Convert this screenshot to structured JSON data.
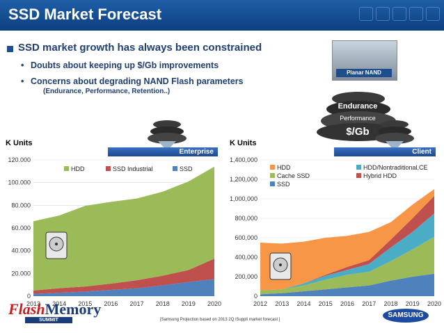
{
  "header": {
    "title": "SSD Market Forecast"
  },
  "bullets": {
    "main": "SSD market growth has always been constrained",
    "sub1": "Doubts about keeping up $/Gb improvements",
    "sub2": "Concerns about degrading NAND Flash parameters",
    "note": "(Endurance, Performance, Retention..)"
  },
  "graphic": {
    "nand_label": "Planar NAND",
    "endurance": "Endurance",
    "performance": "Performance",
    "cost": "$/Gb"
  },
  "left_panel": {
    "units": "K Units",
    "segment": "Enterprise"
  },
  "right_panel": {
    "units": "K Units",
    "segment": "Client"
  },
  "footer": {
    "source": "[Samsung Projection based on 2013 2Q iSuppli market forecast ]",
    "logo_left_1": "Flash",
    "logo_left_2": "Memory",
    "logo_left_3": "SUMMIT",
    "logo_right": "SAMSUNG"
  },
  "colors": {
    "hdd": "#9bbb59",
    "ssd_industrial": "#c0504d",
    "ssd": "#4f81bd",
    "cache_ssd": "#9bbb59",
    "hdd_client": "#f79646",
    "hdd_nontrad": "#4bacc6",
    "hybrid": "#c0504d"
  },
  "chart_data": [
    {
      "type": "area",
      "stacked": true,
      "x": [
        "2013",
        "2014",
        "2015",
        "2016",
        "2017",
        "2018",
        "2019",
        "2020"
      ],
      "series": [
        {
          "name": "SSD",
          "values": [
            2000,
            3000,
            4000,
            5500,
            7000,
            9500,
            12500,
            15000
          ]
        },
        {
          "name": "SSD Industrial",
          "values": [
            3000,
            4000,
            4500,
            5500,
            7000,
            8500,
            10500,
            18000
          ]
        },
        {
          "name": "HDD",
          "values": [
            61000,
            64000,
            71000,
            72000,
            72000,
            74000,
            78000,
            81000
          ]
        }
      ],
      "ylim": [
        0,
        120000
      ],
      "yticks": [
        "0",
        "20.000",
        "40.000",
        "60.000",
        "80.000",
        "100.000",
        "120.000"
      ],
      "xticks": [
        "2013",
        "2014",
        "2015",
        "2016",
        "2017",
        "2018",
        "2019",
        "2020"
      ]
    },
    {
      "type": "area",
      "stacked": true,
      "x": [
        "2012",
        "2013",
        "2014",
        "2015",
        "2016",
        "2017",
        "2018",
        "2019",
        "2020"
      ],
      "series": [
        {
          "name": "SSD",
          "values": [
            20000,
            30000,
            50000,
            70000,
            90000,
            110000,
            160000,
            200000,
            230000
          ]
        },
        {
          "name": "Cache SSD",
          "values": [
            40000,
            40000,
            60000,
            100000,
            130000,
            140000,
            200000,
            280000,
            380000
          ]
        },
        {
          "name": "HDD/Nontraditional,CE",
          "values": [
            0,
            0,
            20000,
            40000,
            50000,
            80000,
            140000,
            180000,
            240000
          ]
        },
        {
          "name": "Hybrid HDD",
          "values": [
            0,
            0,
            0,
            10000,
            30000,
            40000,
            80000,
            140000,
            180000
          ]
        },
        {
          "name": "HDD",
          "values": [
            490000,
            470000,
            430000,
            380000,
            320000,
            290000,
            180000,
            140000,
            70000
          ]
        }
      ],
      "ylim": [
        0,
        1400000
      ],
      "yticks": [
        "0",
        "200,000",
        "400,000",
        "600,000",
        "800,000",
        "1,000,000",
        "1,200,000",
        "1,400,000"
      ],
      "xticks": [
        "2012",
        "2013",
        "2014",
        "2015",
        "2016",
        "2017",
        "2018",
        "2019",
        "2020"
      ]
    }
  ]
}
